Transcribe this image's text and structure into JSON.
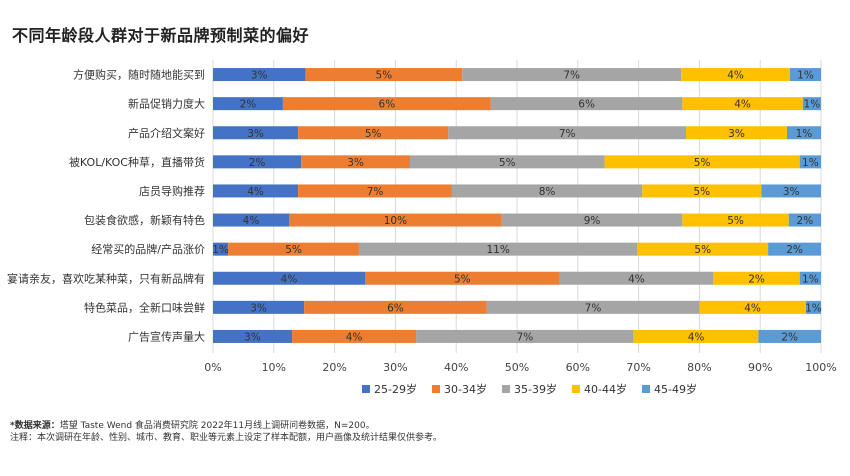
{
  "title": "不同年龄段人群对于新品牌预制菜的偏好",
  "notes": {
    "source_label": "*数据来源：",
    "source_text": "塔望 Taste Wend 食品消费研究院 2022年11月线上调研问卷数据，N=200。",
    "note_text": "注释：本次调研在年龄、性别、城市、教育、职业等元素上设定了样本配额，用户画像及统计结果仅供参考。"
  },
  "chart_data": {
    "type": "bar",
    "orientation": "horizontal",
    "stacked": true,
    "title": "不同年龄段人群对于新品牌预制菜的偏好",
    "xlim": [
      0,
      100
    ],
    "x_ticks": [
      "0%",
      "10%",
      "20%",
      "30%",
      "40%",
      "50%",
      "60%",
      "70%",
      "80%",
      "90%",
      "100%"
    ],
    "grid": true,
    "legend_position": "bottom",
    "categories": [
      "方便购买，随时随地能买到",
      "新品促销力度大",
      "产品介绍文案好",
      "被KOL/KOC种草，直播带货",
      "店员导购推荐",
      "包装食欲感，新颖有特色",
      "经常买的品牌/产品涨价",
      "宴请亲友，喜欢吃某种菜，只有新品牌有",
      "特色菜品，全新口味尝鲜",
      "广告宣传声量大"
    ],
    "series": [
      {
        "name": "25-29岁",
        "color": "#4472C4",
        "values": [
          15.2,
          11.5,
          14.0,
          14.5,
          14.0,
          12.5,
          2.5,
          25.0,
          15.0,
          13.0
        ],
        "labels": [
          "3%",
          "2%",
          "3%",
          "2%",
          "4%",
          "4%",
          "1%",
          "4%",
          "3%",
          "3%"
        ]
      },
      {
        "name": "30-34岁",
        "color": "#ED7D31",
        "values": [
          25.8,
          34.2,
          24.7,
          17.9,
          25.3,
          35.0,
          21.5,
          32.0,
          30.0,
          20.4
        ],
        "labels": [
          "5%",
          "6%",
          "5%",
          "3%",
          "7%",
          "10%",
          "5%",
          "5%",
          "6%",
          "4%"
        ]
      },
      {
        "name": "35-39岁",
        "color": "#A5A5A5",
        "values": [
          36.0,
          31.5,
          39.1,
          32.0,
          31.3,
          29.7,
          45.8,
          25.3,
          35.0,
          35.8
        ],
        "labels": [
          "7%",
          "6%",
          "7%",
          "5%",
          "8%",
          "9%",
          "11%",
          "4%",
          "7%",
          "7%"
        ]
      },
      {
        "name": "40-44岁",
        "color": "#FFC000",
        "values": [
          17.9,
          19.8,
          16.6,
          32.1,
          19.6,
          17.5,
          21.5,
          14.2,
          17.5,
          20.5
        ],
        "labels": [
          "4%",
          "4%",
          "3%",
          "5%",
          "5%",
          "5%",
          "5%",
          "2%",
          "4%",
          "4%"
        ]
      },
      {
        "name": "45-49岁",
        "color": "#5B9BD5",
        "values": [
          5.1,
          3.0,
          5.6,
          3.5,
          9.8,
          5.3,
          8.7,
          3.5,
          2.5,
          10.3
        ],
        "labels": [
          "1%",
          "1%",
          "1%",
          "1%",
          "3%",
          "2%",
          "2%",
          "1%",
          "1%",
          "2%"
        ]
      }
    ]
  }
}
